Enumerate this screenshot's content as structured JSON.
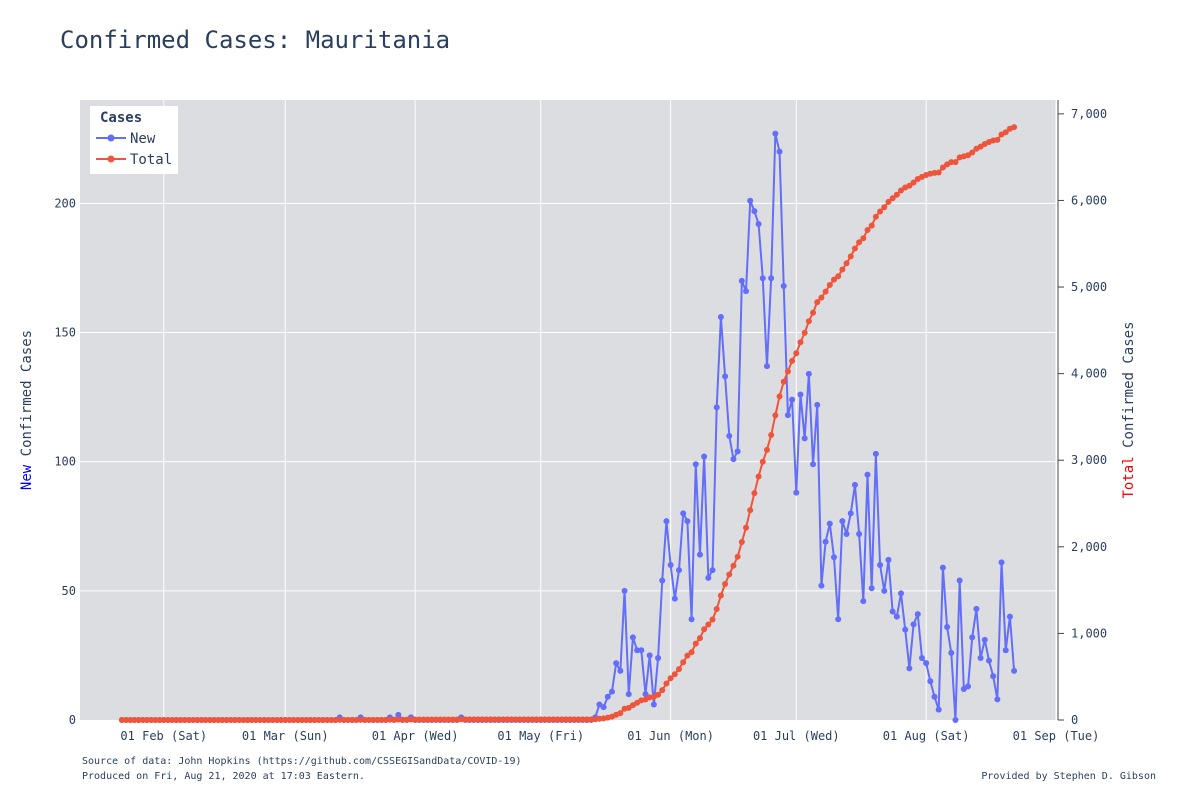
{
  "chart_data": {
    "type": "line",
    "title": "Confirmed Cases: Mauritania",
    "legend": {
      "title": "Cases",
      "placement": "top-left",
      "entries": [
        "New",
        "Total"
      ]
    },
    "colors": {
      "new": "#636efa",
      "total": "#ef553b",
      "plot_bg": "#dcdde0",
      "grid": "#ffffff",
      "ylabel_new_word": "#0000ff",
      "ylabel_total_word": "#ff0000"
    },
    "xlabel": "",
    "ylabel_left": {
      "highlight": "New",
      "rest": " Confirmed Cases"
    },
    "ylabel_right": {
      "highlight": "Total",
      "rest": " Confirmed Cases"
    },
    "x_start_date": "2020-01-22",
    "xlim": [
      "2020-01-12",
      "2020-09-01"
    ],
    "x_ticks": [
      {
        "date": "2020-02-01",
        "label": "01 Feb (Sat)"
      },
      {
        "date": "2020-03-01",
        "label": "01 Mar (Sun)"
      },
      {
        "date": "2020-04-01",
        "label": "01 Apr (Wed)"
      },
      {
        "date": "2020-05-01",
        "label": "01 May (Fri)"
      },
      {
        "date": "2020-06-01",
        "label": "01 Jun (Mon)"
      },
      {
        "date": "2020-07-01",
        "label": "01 Jul (Wed)"
      },
      {
        "date": "2020-08-01",
        "label": "01 Aug (Sat)"
      },
      {
        "date": "2020-09-01",
        "label": "01 Sep (Tue)"
      }
    ],
    "ylim_left": [
      0,
      240
    ],
    "y_ticks_left": [
      {
        "value": 0,
        "label": "0"
      },
      {
        "value": 50,
        "label": "50"
      },
      {
        "value": 100,
        "label": "100"
      },
      {
        "value": 150,
        "label": "150"
      },
      {
        "value": 200,
        "label": "200"
      }
    ],
    "ylim_right": [
      0,
      7160
    ],
    "y_ticks_right": [
      {
        "value": 0,
        "label": "0"
      },
      {
        "value": 1000,
        "label": "1,000"
      },
      {
        "value": 2000,
        "label": "2,000"
      },
      {
        "value": 3000,
        "label": "3,000"
      },
      {
        "value": 4000,
        "label": "4,000"
      },
      {
        "value": 5000,
        "label": "5,000"
      },
      {
        "value": 6000,
        "label": "6,000"
      },
      {
        "value": 7000,
        "label": "7,000"
      }
    ],
    "grid": true,
    "series": [
      {
        "name": "New",
        "axis": "left",
        "values": [
          0,
          0,
          0,
          0,
          0,
          0,
          0,
          0,
          0,
          0,
          0,
          0,
          0,
          0,
          0,
          0,
          0,
          0,
          0,
          0,
          0,
          0,
          0,
          0,
          0,
          0,
          0,
          0,
          0,
          0,
          0,
          0,
          0,
          0,
          0,
          0,
          0,
          0,
          0,
          0,
          0,
          0,
          0,
          0,
          0,
          0,
          0,
          0,
          0,
          0,
          0,
          0,
          1,
          0,
          0,
          0,
          0,
          1,
          0,
          0,
          0,
          0,
          0,
          0,
          1,
          0,
          2,
          0,
          0,
          1,
          0,
          0,
          0,
          0,
          0,
          0,
          0,
          0,
          0,
          0,
          0,
          1,
          0,
          0,
          0,
          0,
          0,
          0,
          0,
          0,
          0,
          0,
          0,
          0,
          0,
          0,
          0,
          0,
          0,
          0,
          0,
          0,
          0,
          0,
          0,
          0,
          0,
          0,
          0,
          0,
          0,
          0,
          0,
          1,
          6,
          5,
          9,
          11,
          22,
          19,
          50,
          10,
          32,
          27,
          27,
          10,
          25,
          6,
          24,
          54,
          77,
          60,
          47,
          58,
          80,
          77,
          39,
          99,
          64,
          102,
          55,
          58,
          121,
          156,
          133,
          110,
          101,
          104,
          170,
          166,
          201,
          197,
          192,
          171,
          137,
          171,
          227,
          220,
          168,
          118,
          124,
          88,
          126,
          109,
          134,
          99,
          122,
          52,
          69,
          76,
          63,
          39,
          77,
          72,
          80,
          91,
          72,
          46,
          95,
          51,
          103,
          60,
          50,
          62,
          42,
          40,
          49,
          35,
          20,
          37,
          41,
          24,
          22,
          15,
          9,
          4,
          59,
          36,
          26,
          0,
          54,
          12,
          13,
          32,
          43,
          24,
          31,
          23,
          17,
          8,
          61,
          27,
          40,
          19
        ]
      },
      {
        "name": "Total",
        "axis": "right",
        "values": [
          0,
          0,
          0,
          0,
          0,
          0,
          0,
          0,
          0,
          0,
          0,
          0,
          0,
          0,
          0,
          0,
          0,
          0,
          0,
          0,
          0,
          0,
          0,
          0,
          0,
          0,
          0,
          0,
          0,
          0,
          0,
          0,
          0,
          0,
          0,
          0,
          0,
          0,
          0,
          0,
          0,
          0,
          0,
          0,
          0,
          0,
          0,
          0,
          0,
          0,
          0,
          0,
          1,
          1,
          1,
          1,
          1,
          2,
          2,
          2,
          2,
          2,
          2,
          2,
          3,
          3,
          5,
          5,
          5,
          6,
          6,
          6,
          6,
          6,
          6,
          6,
          6,
          6,
          6,
          6,
          6,
          7,
          7,
          7,
          7,
          7,
          7,
          7,
          7,
          7,
          7,
          7,
          7,
          7,
          7,
          7,
          7,
          7,
          7,
          7,
          7,
          7,
          7,
          7,
          7,
          7,
          7,
          7,
          7,
          7,
          7,
          7,
          7,
          8,
          14,
          19,
          28,
          39,
          61,
          80,
          130,
          140,
          172,
          199,
          226,
          236,
          261,
          267,
          291,
          345,
          422,
          482,
          529,
          587,
          667,
          744,
          783,
          882,
          946,
          1048,
          1103,
          1161,
          1282,
          1438,
          1571,
          1681,
          1782,
          1886,
          2056,
          2222,
          2423,
          2620,
          2812,
          2983,
          3120,
          3291,
          3518,
          3738,
          3906,
          4024,
          4148,
          4236,
          4362,
          4471,
          4605,
          4704,
          4826,
          4878,
          4947,
          5023,
          5086,
          5125,
          5202,
          5274,
          5354,
          5445,
          5517,
          5563,
          5658,
          5709,
          5812,
          5872,
          5922,
          5984,
          6026,
          6066,
          6115,
          6150,
          6170,
          6207,
          6248,
          6272,
          6294,
          6309,
          6318,
          6322,
          6381,
          6417,
          6443,
          6443,
          6497,
          6509,
          6522,
          6554,
          6597,
          6621,
          6652,
          6675,
          6692,
          6700,
          6761,
          6788,
          6828,
          6847
        ]
      }
    ]
  },
  "footer": {
    "source": "Source of data: John Hopkins (https://github.com/CSSEGISandData/COVID-19)",
    "produced": "Produced on Fri, Aug 21, 2020 at 17:03 Eastern.",
    "credit": "Provided by Stephen D. Gibson"
  }
}
